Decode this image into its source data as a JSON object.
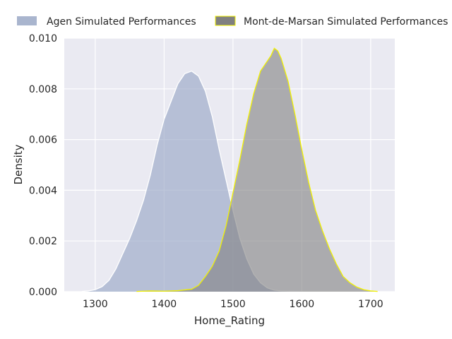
{
  "chart_data": {
    "type": "area",
    "title": "",
    "xlabel": "Home_Rating",
    "ylabel": "Density",
    "xlim": [
      1255,
      1735
    ],
    "ylim": [
      0,
      0.01
    ],
    "xticks": [
      1300,
      1400,
      1500,
      1600,
      1700
    ],
    "yticks": [
      0.0,
      0.002,
      0.004,
      0.006,
      0.008,
      0.01
    ],
    "xtick_labels": [
      "1300",
      "1400",
      "1500",
      "1600",
      "1700"
    ],
    "ytick_labels": [
      "0.000",
      "0.002",
      "0.004",
      "0.006",
      "0.008",
      "0.010"
    ],
    "grid": true,
    "legend_position": "top",
    "series": [
      {
        "name": "Agen Simulated Performances",
        "fill": "#9aa8c6",
        "edge": "#ffffff",
        "x": [
          1280,
          1290,
          1300,
          1310,
          1320,
          1330,
          1340,
          1350,
          1360,
          1370,
          1380,
          1390,
          1400,
          1410,
          1420,
          1430,
          1440,
          1450,
          1460,
          1470,
          1480,
          1490,
          1500,
          1510,
          1520,
          1530,
          1540,
          1550,
          1560,
          1570,
          1580,
          1590,
          1600
        ],
        "y": [
          1e-05,
          3e-05,
          8e-05,
          0.0002,
          0.00045,
          0.0009,
          0.0015,
          0.0021,
          0.0028,
          0.0036,
          0.0046,
          0.0058,
          0.0068,
          0.0075,
          0.0082,
          0.0086,
          0.0087,
          0.0085,
          0.0079,
          0.0069,
          0.0056,
          0.0044,
          0.0032,
          0.0021,
          0.0013,
          0.0007,
          0.00035,
          0.00015,
          6e-05,
          3e-05,
          2e-05,
          1e-05,
          0.0
        ]
      },
      {
        "name": "Mont-de-Marsan Simulated Performances",
        "fill": "#808080",
        "edge": "#f2f200",
        "x": [
          1360,
          1380,
          1400,
          1420,
          1440,
          1450,
          1460,
          1470,
          1480,
          1490,
          1500,
          1510,
          1520,
          1530,
          1540,
          1550,
          1555,
          1560,
          1565,
          1570,
          1580,
          1590,
          1600,
          1610,
          1620,
          1630,
          1640,
          1650,
          1660,
          1670,
          1680,
          1690,
          1700,
          1710
        ],
        "y": [
          1e-05,
          3e-05,
          2e-05,
          4e-05,
          0.0001,
          0.00025,
          0.0006,
          0.001,
          0.0016,
          0.0026,
          0.0039,
          0.0052,
          0.0066,
          0.0078,
          0.0087,
          0.0091,
          0.0093,
          0.0096,
          0.0095,
          0.0092,
          0.0083,
          0.007,
          0.0056,
          0.0043,
          0.0032,
          0.0024,
          0.0017,
          0.0011,
          0.0006,
          0.00035,
          0.00018,
          8e-05,
          3e-05,
          1e-05
        ]
      }
    ]
  }
}
